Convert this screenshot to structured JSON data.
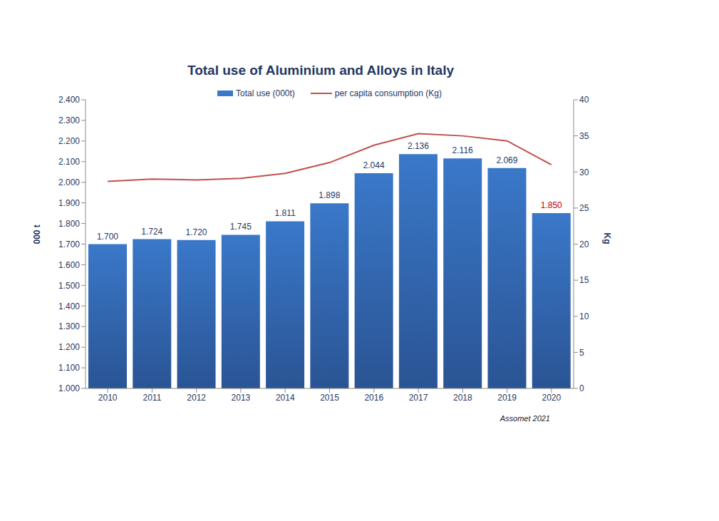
{
  "chart_data": {
    "type": "bar",
    "title": "Total use of Aluminium and Alloys in Italy",
    "categories": [
      "2010",
      "2011",
      "2012",
      "2013",
      "2014",
      "2015",
      "2016",
      "2017",
      "2018",
      "2019",
      "2020"
    ],
    "series": [
      {
        "name": "Total use (000t)",
        "type": "bar",
        "color": "#3a78c9",
        "data_labels": true,
        "values": [
          1700,
          1724,
          1720,
          1745,
          1811,
          1898,
          2044,
          2136,
          2116,
          2069,
          1850
        ],
        "value_labels": [
          "1.700",
          "1.724",
          "1.720",
          "1.745",
          "1.811",
          "1.898",
          "2.044",
          "2.136",
          "2.116",
          "2.069",
          "1.850"
        ]
      },
      {
        "name": "per capita consumption (Kg)",
        "type": "line",
        "color": "#c0504d",
        "axis": "y2",
        "values": [
          28.7,
          29.0,
          28.9,
          29.1,
          29.8,
          31.3,
          33.7,
          35.3,
          35.0,
          34.3,
          31.0
        ]
      }
    ],
    "y_label": "000 t",
    "y2_label": "Kg",
    "ylim": [
      1000,
      2400
    ],
    "yticks": [
      {
        "value": 1000,
        "label": "1.000"
      },
      {
        "value": 1100,
        "label": "1.100"
      },
      {
        "value": 1200,
        "label": "1.200"
      },
      {
        "value": 1300,
        "label": "1.300"
      },
      {
        "value": 1400,
        "label": "1.400"
      },
      {
        "value": 1500,
        "label": "1.500"
      },
      {
        "value": 1600,
        "label": "1.600"
      },
      {
        "value": 1700,
        "label": "1.700"
      },
      {
        "value": 1800,
        "label": "1.800"
      },
      {
        "value": 1900,
        "label": "1.900"
      },
      {
        "value": 2000,
        "label": "2.000"
      },
      {
        "value": 2100,
        "label": "2.100"
      },
      {
        "value": 2200,
        "label": "2.200"
      },
      {
        "value": 2300,
        "label": "2.300"
      },
      {
        "value": 2400,
        "label": "2.400"
      }
    ],
    "y2lim": [
      0,
      40
    ],
    "y2ticks": [
      0,
      5,
      10,
      15,
      20,
      25,
      30,
      35,
      40
    ],
    "grid": false,
    "legend": "top",
    "annotations": [
      "Assomet 2021"
    ]
  }
}
